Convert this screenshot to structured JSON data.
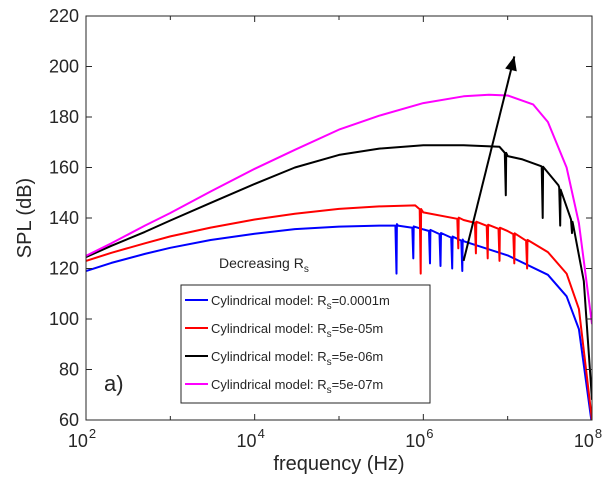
{
  "chart_data": {
    "type": "line",
    "xlabel": "frequency (Hz)",
    "ylabel": "SPL (dB)",
    "xscale": "log",
    "xlim": [
      100,
      100000000
    ],
    "ylim": [
      60,
      220
    ],
    "grid": false,
    "legend_placement": "bottom-center",
    "panel_label": "a)",
    "x_ticks": [
      {
        "base": "10",
        "exp": "2"
      },
      {
        "base": "10",
        "exp": "4"
      },
      {
        "base": "10",
        "exp": "6"
      },
      {
        "base": "10",
        "exp": "8"
      }
    ],
    "y_ticks": [
      "60",
      "80",
      "100",
      "120",
      "140",
      "160",
      "180",
      "200",
      "220"
    ],
    "annotation": {
      "text": "Decreasing R",
      "subscript": "s",
      "arrow_from": [
        3000000,
        123
      ],
      "arrow_to": [
        12000000,
        204
      ]
    },
    "series": [
      {
        "name": "Cylindrical model: R",
        "name_sub": "s",
        "name_suffix": "=0.0001m",
        "color": "#0000ff",
        "x": [
          100,
          200,
          500,
          1000,
          3000,
          10000,
          30000,
          100000,
          300000,
          500000,
          1000000,
          3000000,
          10000000,
          30000000,
          50000000,
          70000000,
          100000000
        ],
        "y": [
          119,
          122.2,
          125.8,
          128.2,
          131.3,
          133.8,
          135.6,
          136.6,
          137,
          137,
          135.5,
          130.8,
          125.2,
          117.5,
          109,
          96,
          58
        ],
        "dips": [
          [
            480000,
            118
          ],
          [
            760000,
            124
          ],
          [
            1200000,
            122
          ],
          [
            1600000,
            121
          ],
          [
            2200000,
            120
          ],
          [
            2900000,
            119
          ]
        ]
      },
      {
        "name": "Cylindrical model: R",
        "name_sub": "s",
        "name_suffix": "=5e-05m",
        "color": "#ff0000",
        "x": [
          100,
          200,
          500,
          1000,
          3000,
          10000,
          30000,
          100000,
          300000,
          800000,
          1000000,
          3000000,
          10000000,
          30000000,
          50000000,
          70000000,
          100000000
        ],
        "y": [
          123,
          126.2,
          130,
          132.7,
          136.2,
          139.4,
          141.7,
          143.6,
          144.6,
          145,
          142.2,
          139.2,
          134.8,
          126.5,
          118,
          104,
          60
        ],
        "dips": [
          [
            930000,
            118
          ],
          [
            2600000,
            128
          ],
          [
            4200000,
            126
          ],
          [
            5800000,
            124
          ],
          [
            8000000,
            123
          ],
          [
            12000000,
            122
          ],
          [
            17000000,
            120
          ]
        ]
      },
      {
        "name": "Cylindrical model: R",
        "name_sub": "s",
        "name_suffix": "=5e-06m",
        "color": "#000000",
        "x": [
          100,
          200,
          500,
          1000,
          3000,
          10000,
          30000,
          100000,
          300000,
          1000000,
          3000000,
          8000000,
          10000000,
          15000000,
          25000000,
          40000000,
          60000000,
          80000000,
          100000000
        ],
        "y": [
          124.5,
          129,
          134.5,
          139,
          146,
          153.5,
          160,
          165,
          167.5,
          168.8,
          168.8,
          168.2,
          164.5,
          163.2,
          160.5,
          153,
          137,
          115,
          68
        ],
        "dips": [
          [
            9500000,
            149
          ],
          [
            26000000,
            140
          ],
          [
            42000000,
            137
          ],
          [
            58000000,
            134
          ]
        ]
      },
      {
        "name": "Cylindrical model: R",
        "name_sub": "s",
        "name_suffix": "=5e-07m",
        "color": "#ff00ff",
        "x": [
          100,
          200,
          500,
          1000,
          3000,
          10000,
          30000,
          100000,
          300000,
          1000000,
          3000000,
          6000000,
          10000000,
          20000000,
          30000000,
          50000000,
          70000000,
          100000000
        ],
        "y": [
          125,
          130,
          137,
          142,
          150.5,
          159.5,
          167,
          175,
          180.5,
          185.5,
          188.2,
          188.8,
          188.5,
          185,
          178,
          160,
          138,
          98
        ],
        "dips": []
      }
    ]
  }
}
